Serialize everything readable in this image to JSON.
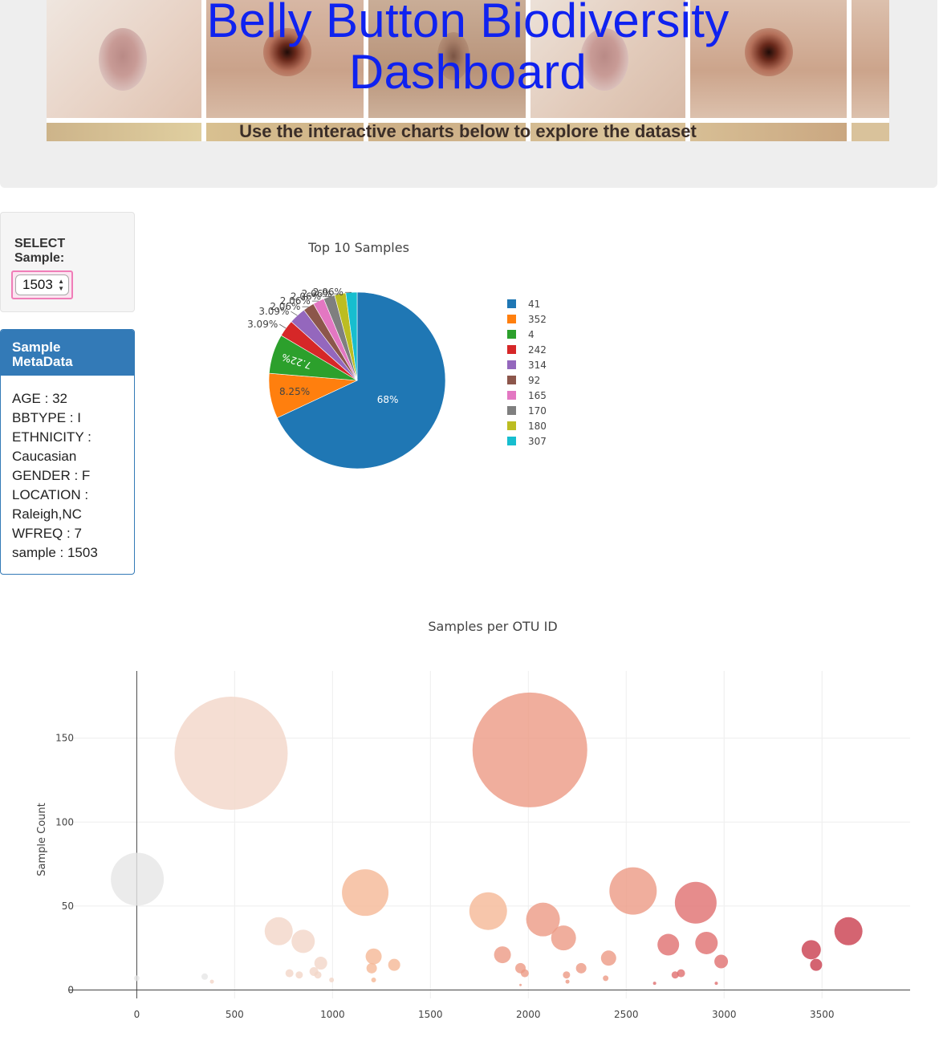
{
  "header": {
    "title_line1": "Belly Button Biodiversity",
    "title_line2": "Dashboard",
    "subtitle": "Use the interactive charts below to explore the dataset"
  },
  "selector": {
    "label_line1": "SELECT",
    "label_line2": "Sample:",
    "selected": "1503"
  },
  "metadata_panel": {
    "heading_line1": "Sample",
    "heading_line2": "MetaData",
    "lines": [
      "AGE : 32",
      "BBTYPE : I",
      "ETHNICITY :",
      "Caucasian",
      "GENDER : F",
      "LOCATION :",
      "Raleigh,NC",
      "WFREQ : 7",
      "sample : 1503"
    ]
  },
  "colors": {
    "title_blue": "#0f22f0",
    "panel_blue": "#337ab7",
    "select_outline": "#f07db8"
  },
  "chart_data": [
    {
      "type": "pie",
      "title": "Top 10 Samples",
      "labels": [
        "41",
        "352",
        "4",
        "242",
        "314",
        "92",
        "165",
        "170",
        "180",
        "307"
      ],
      "values": [
        68,
        8.25,
        7.22,
        3.09,
        3.09,
        2.06,
        2.06,
        2.06,
        2.06,
        2.06
      ],
      "slice_labels": [
        "68%",
        "8.25%",
        "7.22%",
        "3.09%",
        "3.09%",
        "2.06%",
        "2.06%",
        "2.06%",
        "2.06%",
        "2.06%"
      ],
      "colors": [
        "#1f77b4",
        "#ff7f0e",
        "#2ca02c",
        "#d62728",
        "#9467bd",
        "#8c564b",
        "#e377c2",
        "#7f7f7f",
        "#bcbd22",
        "#17becf"
      ],
      "legend_placement": "right"
    },
    {
      "type": "scatter",
      "title": "Samples per OTU ID",
      "xlabel": "",
      "ylabel": "Sample Count",
      "xlim": [
        -350,
        3950
      ],
      "ylim": [
        -5,
        190
      ],
      "xticks": [
        "0",
        "500",
        "1000",
        "1500",
        "2000",
        "2500",
        "3000",
        "3500"
      ],
      "yticks": [
        "0",
        "50",
        "100",
        "150"
      ],
      "grid": true,
      "colorscale": [
        "#e6e6e6",
        "#f2d6c8",
        "#f5b896",
        "#ec9a85",
        "#e06f6f",
        "#c93d4d"
      ],
      "points": [
        {
          "x": 3,
          "y": 66
        },
        {
          "x": 0,
          "y": 7
        },
        {
          "x": 347,
          "y": 8
        },
        {
          "x": 384,
          "y": 5
        },
        {
          "x": 482,
          "y": 141
        },
        {
          "x": 725,
          "y": 35
        },
        {
          "x": 850,
          "y": 29
        },
        {
          "x": 780,
          "y": 10
        },
        {
          "x": 830,
          "y": 9
        },
        {
          "x": 905,
          "y": 11
        },
        {
          "x": 940,
          "y": 16
        },
        {
          "x": 925,
          "y": 9
        },
        {
          "x": 995,
          "y": 6
        },
        {
          "x": 1167,
          "y": 58
        },
        {
          "x": 1210,
          "y": 20
        },
        {
          "x": 1200,
          "y": 13
        },
        {
          "x": 1210,
          "y": 6
        },
        {
          "x": 1315,
          "y": 15
        },
        {
          "x": 1795,
          "y": 47
        },
        {
          "x": 1868,
          "y": 21
        },
        {
          "x": 1960,
          "y": 13
        },
        {
          "x": 1982,
          "y": 10
        },
        {
          "x": 2008,
          "y": 143
        },
        {
          "x": 2075,
          "y": 42
        },
        {
          "x": 2180,
          "y": 31
        },
        {
          "x": 2195,
          "y": 9
        },
        {
          "x": 2270,
          "y": 13
        },
        {
          "x": 2410,
          "y": 19
        },
        {
          "x": 2395,
          "y": 7
        },
        {
          "x": 2535,
          "y": 59
        },
        {
          "x": 2715,
          "y": 27
        },
        {
          "x": 2750,
          "y": 9
        },
        {
          "x": 2780,
          "y": 10
        },
        {
          "x": 2855,
          "y": 52
        },
        {
          "x": 2910,
          "y": 28
        },
        {
          "x": 2985,
          "y": 17
        },
        {
          "x": 3445,
          "y": 24
        },
        {
          "x": 3470,
          "y": 15
        },
        {
          "x": 3635,
          "y": 35
        },
        {
          "x": 2200,
          "y": 5
        },
        {
          "x": 2645,
          "y": 4
        },
        {
          "x": 1960,
          "y": 3
        },
        {
          "x": 2960,
          "y": 4
        }
      ]
    }
  ]
}
